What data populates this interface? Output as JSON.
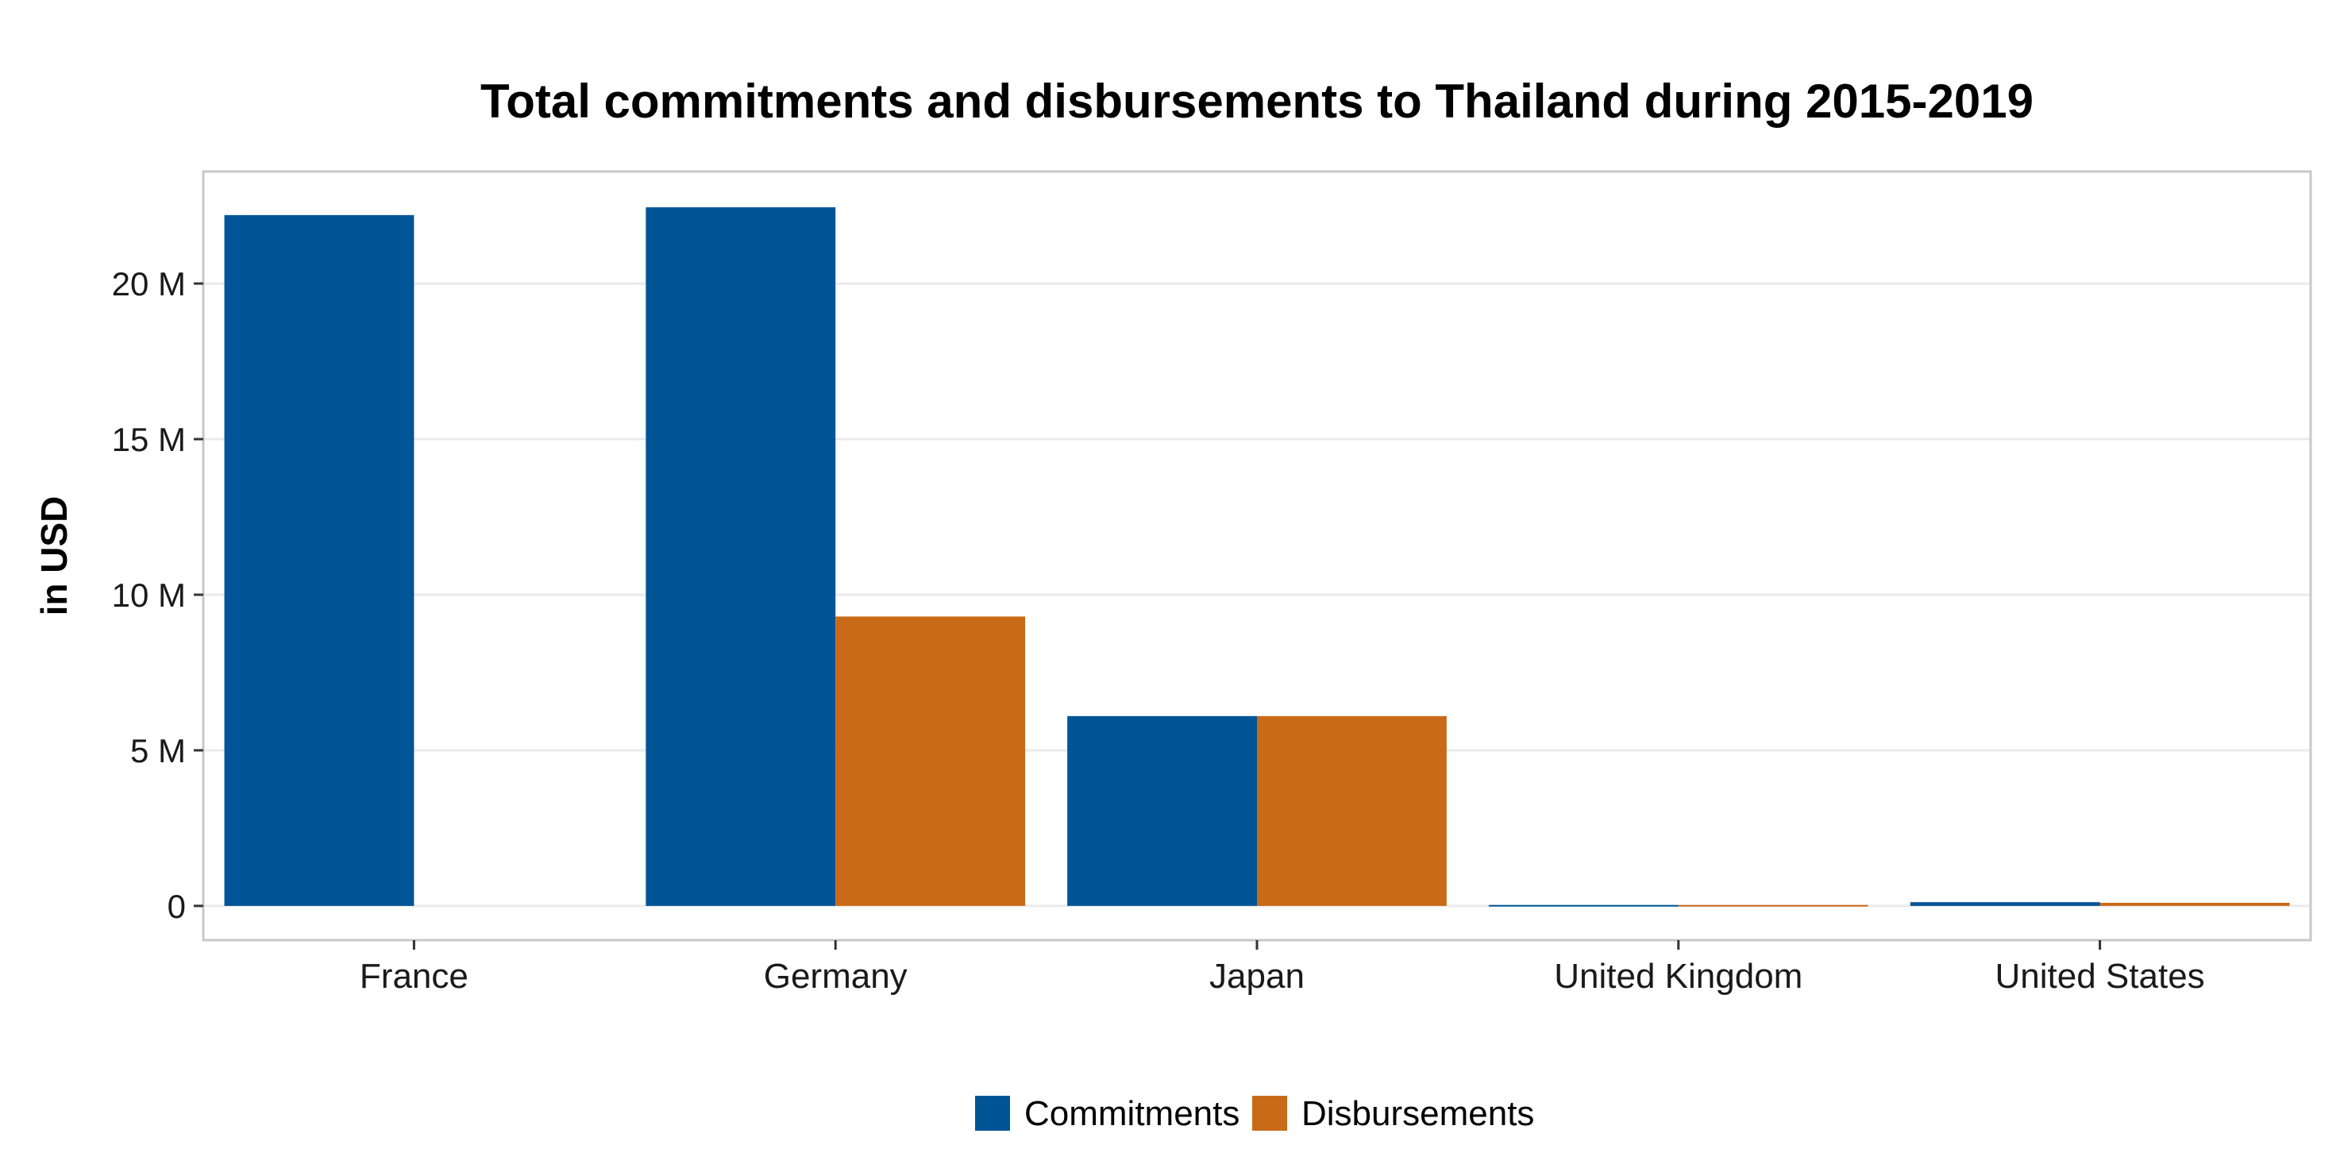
{
  "chart_data": {
    "type": "bar",
    "title": "Total commitments and disbursements to Thailand during 2015-2019",
    "xlabel": "",
    "ylabel": "in USD",
    "categories": [
      "France",
      "Germany",
      "Japan",
      "United Kingdom",
      "United States"
    ],
    "series": [
      {
        "name": "Commitments",
        "color": "#005596",
        "values": [
          22200000,
          22450000,
          6100000,
          30000,
          120000
        ]
      },
      {
        "name": "Disbursements",
        "color": "#C96A18",
        "values": [
          0,
          9300000,
          6100000,
          30000,
          100000
        ]
      }
    ],
    "yticks": [
      {
        "value": 0,
        "label": "0"
      },
      {
        "value": 5000000,
        "label": "5 M"
      },
      {
        "value": 10000000,
        "label": "10 M"
      },
      {
        "value": 15000000,
        "label": "15 M"
      },
      {
        "value": 20000000,
        "label": "20 M"
      }
    ],
    "ylim": [
      -1100000,
      23600000
    ],
    "grid": true,
    "legend": "bottom"
  }
}
